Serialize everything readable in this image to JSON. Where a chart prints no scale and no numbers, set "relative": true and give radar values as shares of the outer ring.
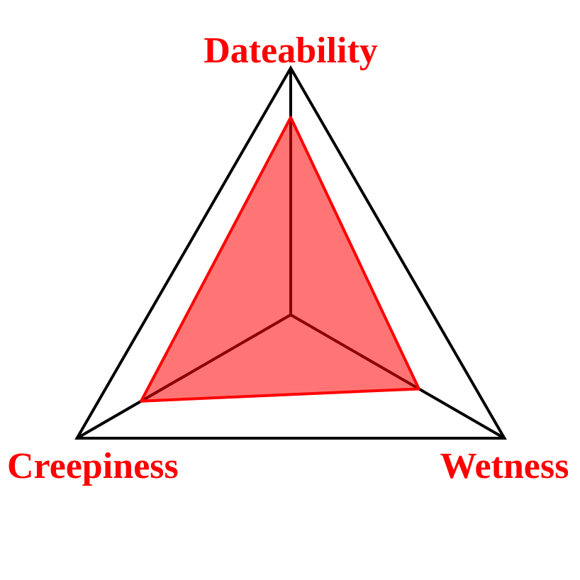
{
  "chart_data": {
    "type": "radar",
    "categories": [
      "Dateability",
      "Wetness",
      "Creepiness"
    ],
    "series": [
      {
        "color": "#ff0000",
        "values": [
          0.8,
          0.6,
          0.7
        ]
      }
    ],
    "relative": true,
    "grid": true,
    "marker": "none"
  }
}
